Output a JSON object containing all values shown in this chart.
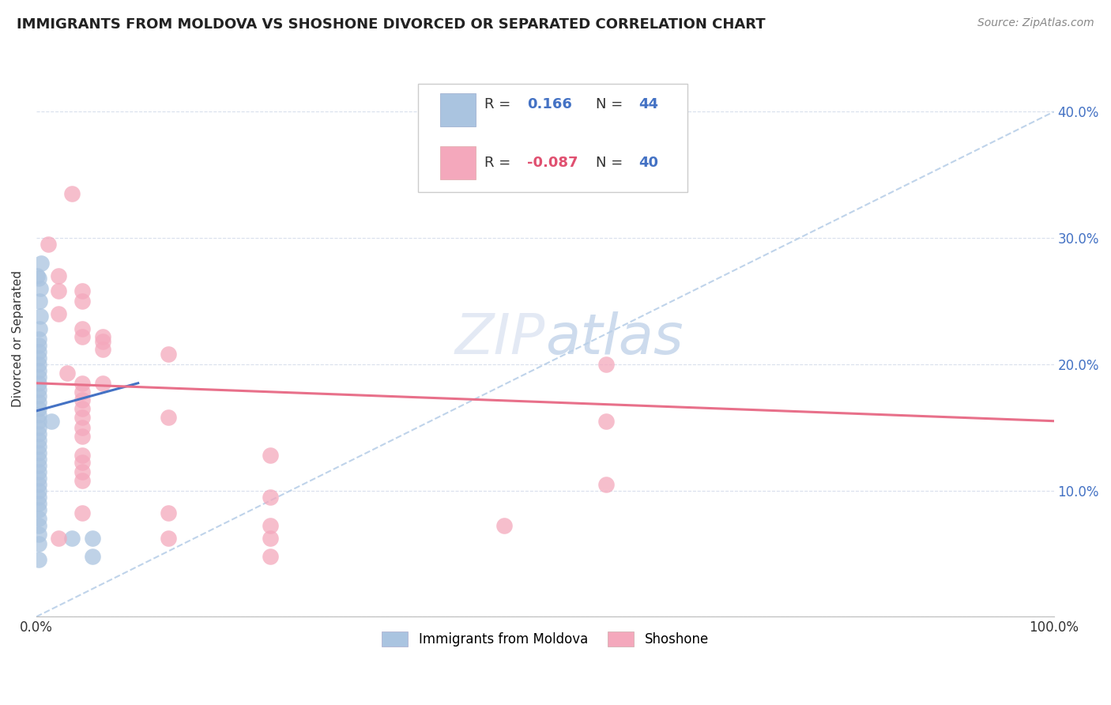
{
  "title": "IMMIGRANTS FROM MOLDOVA VS SHOSHONE DIVORCED OR SEPARATED CORRELATION CHART",
  "source": "Source: ZipAtlas.com",
  "ylabel": "Divorced or Separated",
  "legend1_label": "Immigrants from Moldova",
  "legend2_label": "Shoshone",
  "r1": 0.166,
  "n1": 44,
  "r2": -0.087,
  "n2": 40,
  "color_blue": "#aac4e0",
  "color_pink": "#f4a8bc",
  "line_blue": "#4472c4",
  "line_pink": "#e8708a",
  "line_dashed_color": "#b8cfe8",
  "background": "#ffffff",
  "grid_color": "#d0d8e8",
  "x_min": 0.0,
  "x_max": 1.0,
  "y_min": 0.0,
  "y_max": 0.44,
  "blue_points": [
    [
      0.001,
      0.27
    ],
    [
      0.002,
      0.268
    ],
    [
      0.005,
      0.28
    ],
    [
      0.004,
      0.26
    ],
    [
      0.003,
      0.25
    ],
    [
      0.004,
      0.238
    ],
    [
      0.003,
      0.228
    ],
    [
      0.002,
      0.22
    ],
    [
      0.002,
      0.215
    ],
    [
      0.002,
      0.21
    ],
    [
      0.002,
      0.205
    ],
    [
      0.002,
      0.2
    ],
    [
      0.002,
      0.195
    ],
    [
      0.002,
      0.19
    ],
    [
      0.002,
      0.185
    ],
    [
      0.002,
      0.18
    ],
    [
      0.002,
      0.175
    ],
    [
      0.002,
      0.17
    ],
    [
      0.002,
      0.165
    ],
    [
      0.002,
      0.16
    ],
    [
      0.002,
      0.155
    ],
    [
      0.002,
      0.15
    ],
    [
      0.002,
      0.145
    ],
    [
      0.002,
      0.14
    ],
    [
      0.002,
      0.135
    ],
    [
      0.002,
      0.13
    ],
    [
      0.002,
      0.125
    ],
    [
      0.002,
      0.12
    ],
    [
      0.002,
      0.115
    ],
    [
      0.002,
      0.11
    ],
    [
      0.002,
      0.105
    ],
    [
      0.002,
      0.1
    ],
    [
      0.002,
      0.095
    ],
    [
      0.002,
      0.09
    ],
    [
      0.002,
      0.085
    ],
    [
      0.002,
      0.078
    ],
    [
      0.002,
      0.072
    ],
    [
      0.002,
      0.065
    ],
    [
      0.002,
      0.058
    ],
    [
      0.015,
      0.155
    ],
    [
      0.002,
      0.045
    ],
    [
      0.035,
      0.062
    ],
    [
      0.055,
      0.062
    ],
    [
      0.055,
      0.048
    ]
  ],
  "pink_points": [
    [
      0.035,
      0.335
    ],
    [
      0.012,
      0.295
    ],
    [
      0.022,
      0.27
    ],
    [
      0.022,
      0.258
    ],
    [
      0.045,
      0.258
    ],
    [
      0.045,
      0.25
    ],
    [
      0.022,
      0.24
    ],
    [
      0.045,
      0.228
    ],
    [
      0.045,
      0.222
    ],
    [
      0.065,
      0.222
    ],
    [
      0.065,
      0.218
    ],
    [
      0.065,
      0.212
    ],
    [
      0.13,
      0.208
    ],
    [
      0.03,
      0.193
    ],
    [
      0.045,
      0.185
    ],
    [
      0.065,
      0.185
    ],
    [
      0.045,
      0.178
    ],
    [
      0.045,
      0.172
    ],
    [
      0.045,
      0.165
    ],
    [
      0.045,
      0.158
    ],
    [
      0.045,
      0.15
    ],
    [
      0.045,
      0.143
    ],
    [
      0.13,
      0.158
    ],
    [
      0.045,
      0.128
    ],
    [
      0.045,
      0.122
    ],
    [
      0.045,
      0.115
    ],
    [
      0.045,
      0.108
    ],
    [
      0.56,
      0.2
    ],
    [
      0.56,
      0.155
    ],
    [
      0.56,
      0.105
    ],
    [
      0.045,
      0.082
    ],
    [
      0.13,
      0.082
    ],
    [
      0.23,
      0.128
    ],
    [
      0.23,
      0.095
    ],
    [
      0.23,
      0.072
    ],
    [
      0.022,
      0.062
    ],
    [
      0.13,
      0.062
    ],
    [
      0.23,
      0.062
    ],
    [
      0.46,
      0.072
    ],
    [
      0.23,
      0.048
    ]
  ],
  "ytick_values": [
    0.0,
    0.1,
    0.2,
    0.3,
    0.4
  ],
  "ytick_labels_right": [
    "",
    "10.0%",
    "20.0%",
    "30.0%",
    "40.0%"
  ],
  "xtick_values": [
    0.0,
    0.2,
    0.4,
    0.6,
    0.8,
    1.0
  ],
  "xtick_labels": [
    "0.0%",
    "",
    "",
    "",
    "",
    "100.0%"
  ],
  "blue_line_x": [
    0.0,
    0.1
  ],
  "blue_line_y": [
    0.163,
    0.185
  ],
  "pink_line_x": [
    0.0,
    1.0
  ],
  "pink_line_y": [
    0.185,
    0.155
  ],
  "dashed_line_x": [
    0.0,
    1.0
  ],
  "dashed_line_y": [
    0.0,
    0.4
  ]
}
